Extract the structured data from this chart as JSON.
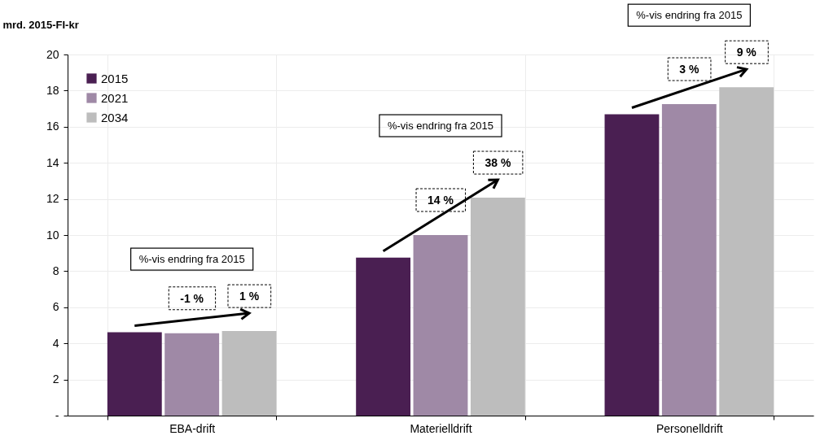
{
  "chart_data": {
    "type": "bar",
    "ylabel": "mrd. 2015-FI-kr",
    "categories": [
      "EBA-drift",
      "Materielldrift",
      "Personelldrift"
    ],
    "series": [
      {
        "name": "2015",
        "color": "#4a1f52",
        "values": [
          4.62,
          8.75,
          16.69
        ]
      },
      {
        "name": "2021",
        "color": "#9f89a6",
        "values": [
          4.56,
          10.0,
          17.25
        ]
      },
      {
        "name": "2034",
        "color": "#bdbdbd",
        "values": [
          4.68,
          12.07,
          18.19
        ]
      }
    ],
    "ylim": [
      0,
      20
    ],
    "yticks": [
      {
        "value": 0,
        "label": "-"
      },
      2,
      4,
      6,
      8,
      10,
      12,
      14,
      16,
      18,
      20
    ],
    "grid": true,
    "legend": "top left",
    "annotations": [
      "%-vis endring fra 2015",
      "-1 %",
      "1 %",
      "%-vis endring fra 2015",
      "14 %",
      "38 %",
      "%-vis endring fra 2015",
      "3 %",
      "9 %"
    ]
  }
}
